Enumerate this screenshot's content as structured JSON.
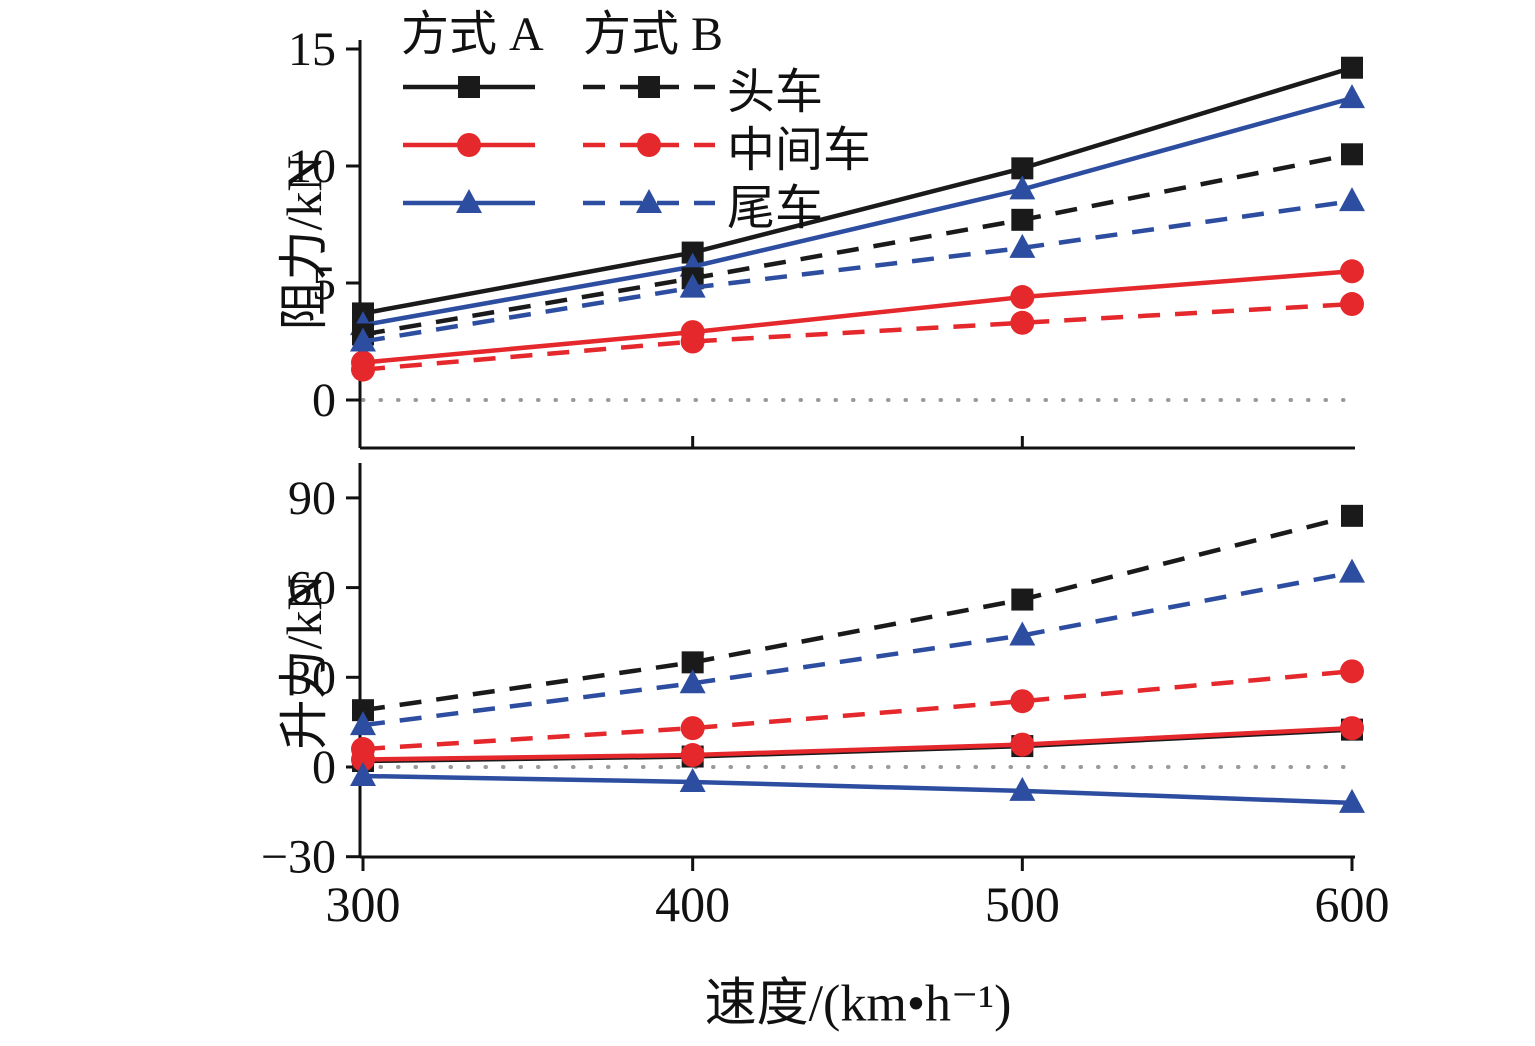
{
  "legend": {
    "col_a": "方式 A",
    "col_b": "方式 B",
    "items": [
      {
        "label": "头车",
        "color": "#1a1a1a",
        "marker": "square"
      },
      {
        "label": "中间车",
        "color": "#e4282c",
        "marker": "circle"
      },
      {
        "label": "尾车",
        "color": "#2d4da0",
        "marker": "triangle"
      }
    ]
  },
  "chart_data": [
    {
      "type": "line",
      "ylabel": "阻力/kN",
      "x": [
        300,
        400,
        500,
        600
      ],
      "yticks": [
        0,
        5,
        10,
        15
      ],
      "ylim": [
        -2,
        15.5
      ],
      "grid": false,
      "zero_line": true,
      "series": [
        {
          "name": "方式A 头车",
          "color": "#1a1a1a",
          "dash": false,
          "marker": "square",
          "values": [
            3.7,
            6.3,
            9.9,
            14.2
          ]
        },
        {
          "name": "方式A 中间车",
          "color": "#e4282c",
          "dash": false,
          "marker": "circle",
          "values": [
            1.6,
            2.9,
            4.4,
            5.5
          ]
        },
        {
          "name": "方式A 尾车",
          "color": "#2d4da0",
          "dash": false,
          "marker": "triangle",
          "values": [
            3.2,
            5.7,
            9.0,
            12.9
          ]
        },
        {
          "name": "方式B 头车",
          "color": "#1a1a1a",
          "dash": true,
          "marker": "square",
          "values": [
            2.8,
            5.2,
            7.7,
            10.5
          ]
        },
        {
          "name": "方式B 中间车",
          "color": "#e4282c",
          "dash": true,
          "marker": "circle",
          "values": [
            1.3,
            2.5,
            3.3,
            4.1
          ]
        },
        {
          "name": "方式B 尾车",
          "color": "#2d4da0",
          "dash": true,
          "marker": "triangle",
          "values": [
            2.5,
            4.8,
            6.5,
            8.5
          ]
        }
      ]
    },
    {
      "type": "line",
      "ylabel": "升力/kN",
      "xlabel": "速度/(km•h⁻¹)",
      "x": [
        300,
        400,
        500,
        600
      ],
      "xticklabels": [
        "300",
        "400",
        "500",
        "600"
      ],
      "yticks": [
        -30,
        0,
        30,
        60,
        90
      ],
      "ylim": [
        -30,
        98
      ],
      "grid": false,
      "zero_line": true,
      "series": [
        {
          "name": "方式A 头车",
          "color": "#1a1a1a",
          "dash": false,
          "marker": "square",
          "values": [
            2,
            3.5,
            7,
            12.5
          ]
        },
        {
          "name": "方式A 中间车",
          "color": "#e4282c",
          "dash": false,
          "marker": "circle",
          "values": [
            2.5,
            4,
            7.5,
            13
          ]
        },
        {
          "name": "方式A 尾车",
          "color": "#2d4da0",
          "dash": false,
          "marker": "triangle",
          "values": [
            -3,
            -5,
            -8,
            -12
          ]
        },
        {
          "name": "方式B 头车",
          "color": "#1a1a1a",
          "dash": true,
          "marker": "square",
          "values": [
            19,
            35,
            56,
            84
          ]
        },
        {
          "name": "方式B 中间车",
          "color": "#e4282c",
          "dash": true,
          "marker": "circle",
          "values": [
            6,
            13,
            22,
            32
          ]
        },
        {
          "name": "方式B 尾车",
          "color": "#2d4da0",
          "dash": true,
          "marker": "triangle",
          "values": [
            14,
            28,
            44,
            65
          ]
        }
      ]
    }
  ]
}
